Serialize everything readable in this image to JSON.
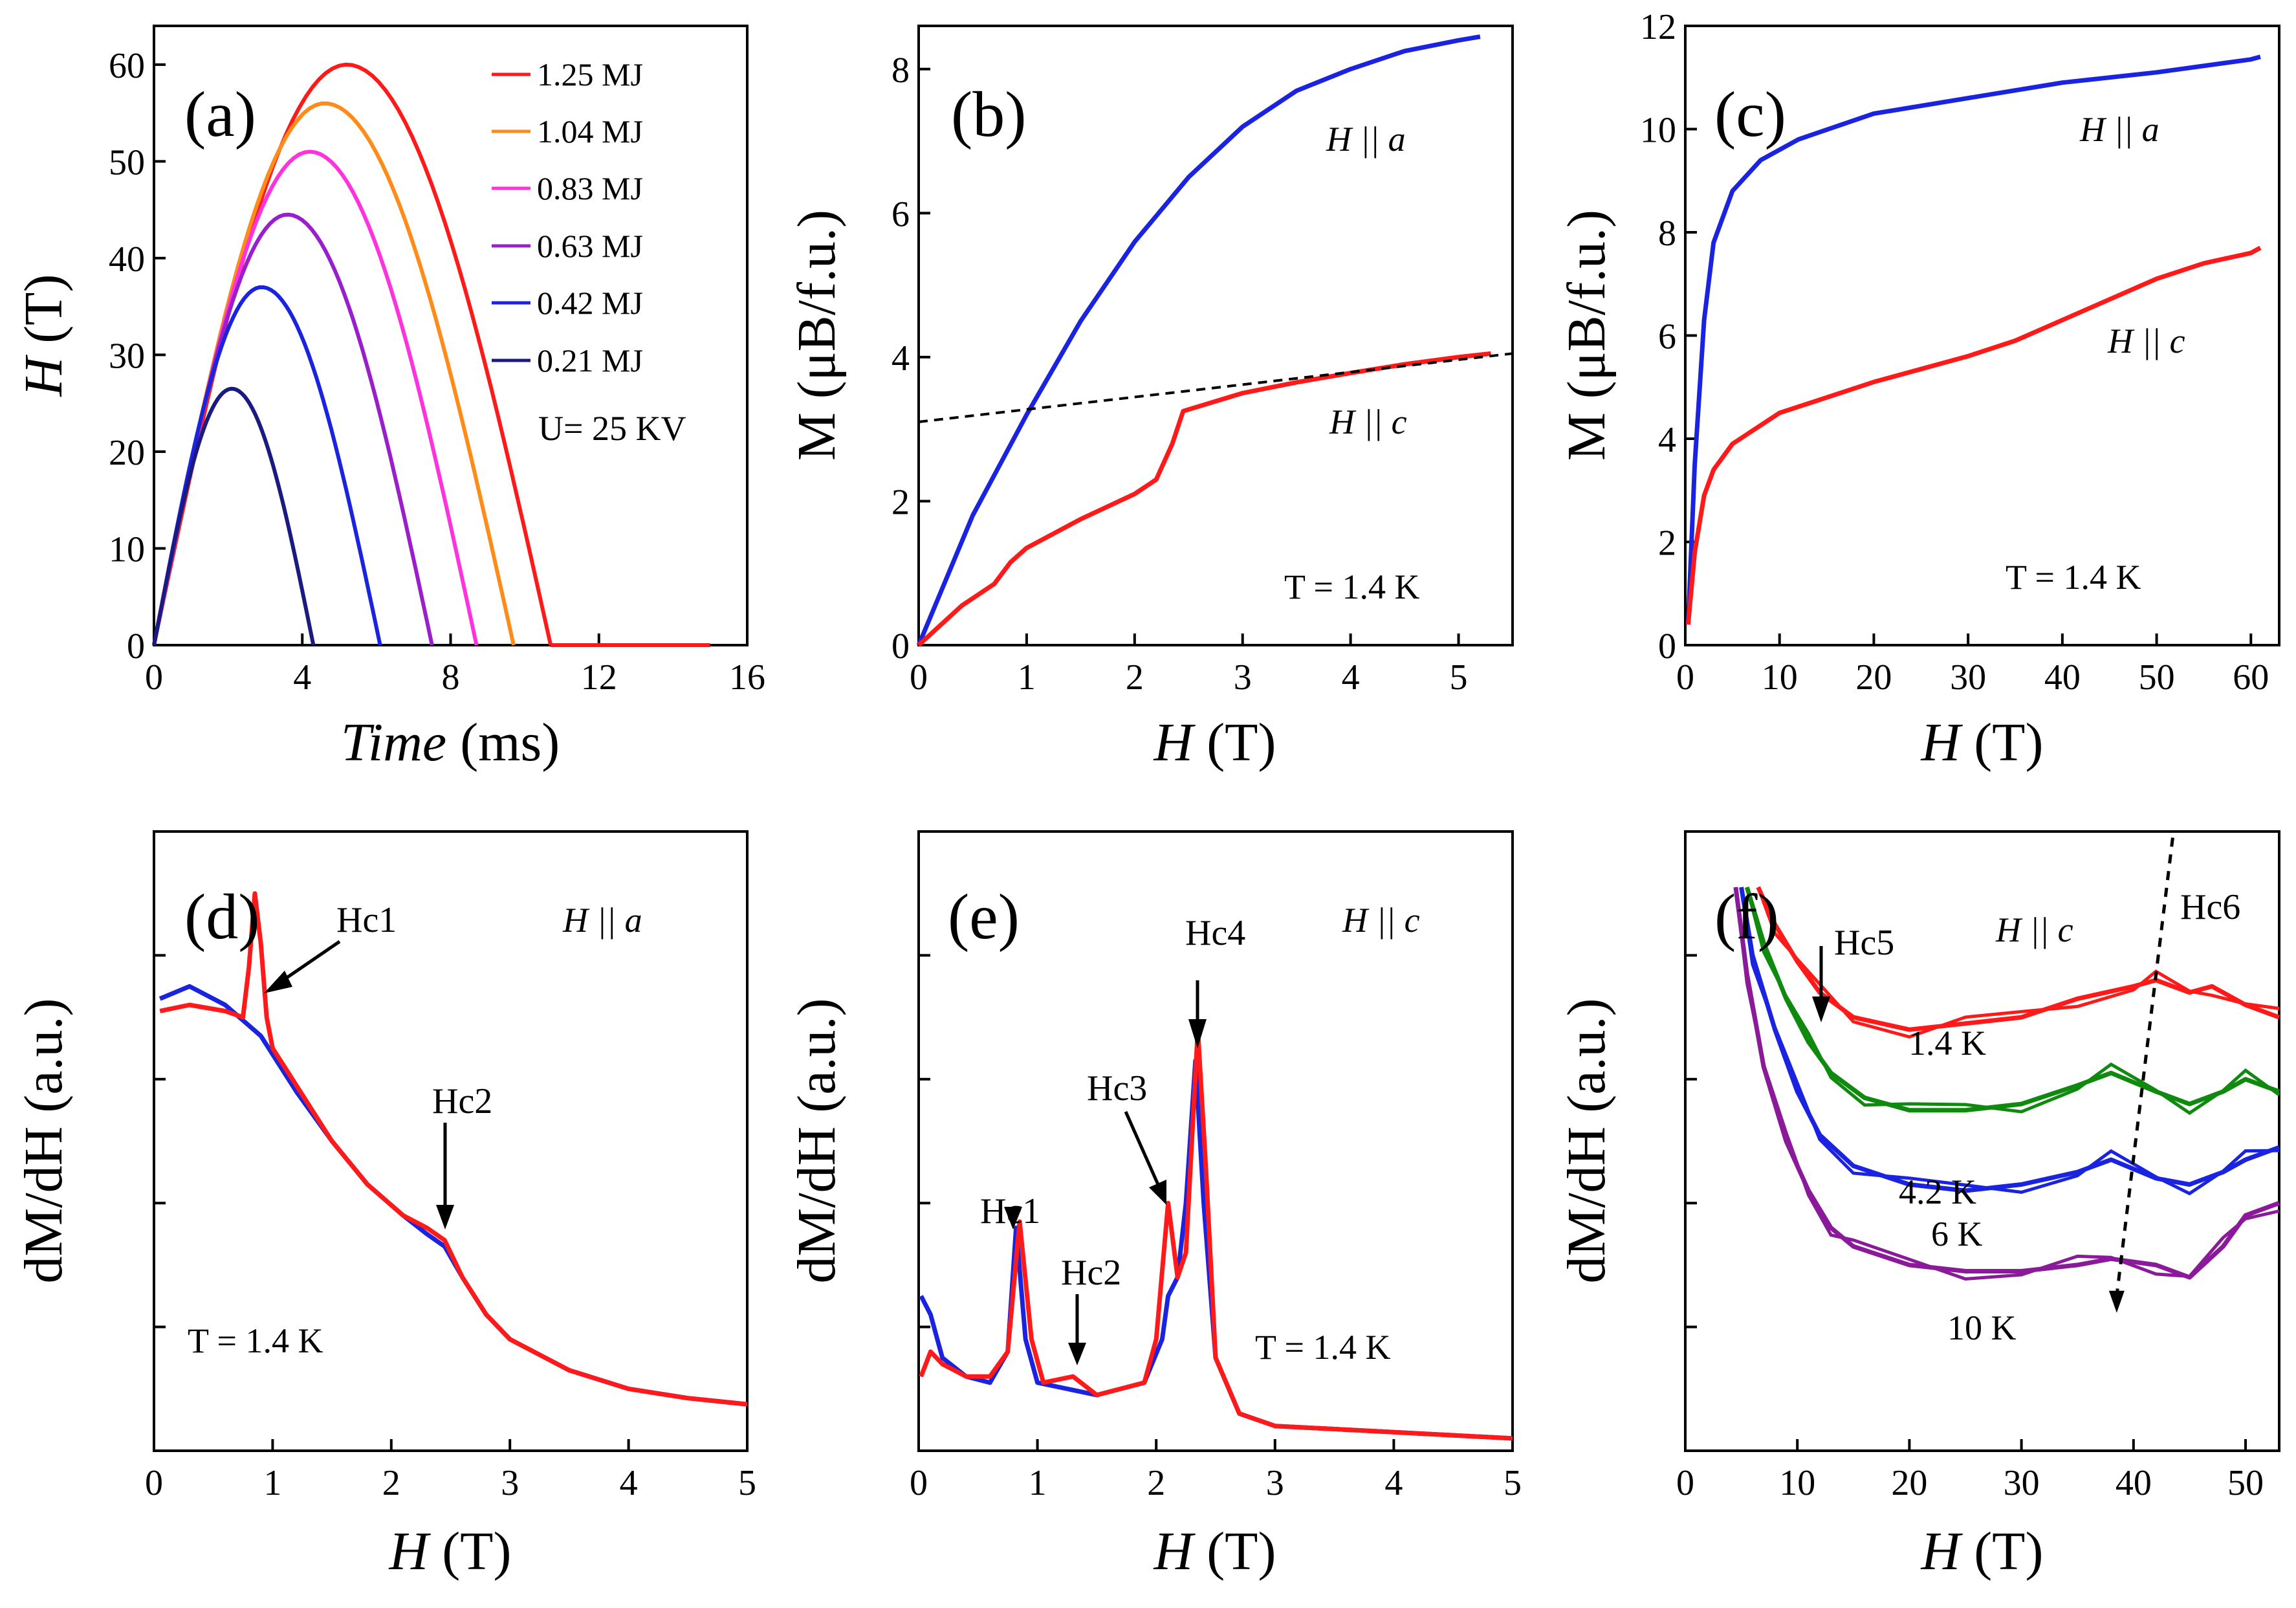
{
  "colors": {
    "red": "#ff1a1a",
    "orange": "#ff8c1a",
    "magenta": "#ff33dd",
    "purple": "#9a1fcc",
    "blue": "#1a24e0",
    "navy": "#1a1a80",
    "green": "#0f8a0f",
    "violet": "#8a1a99"
  },
  "chart_data": [
    {
      "id": "a",
      "type": "line",
      "panel_label": "(a)",
      "xlabel_italic": "Time",
      "xlabel_unit": " (ms)",
      "ylabel_italic": "H",
      "ylabel_unit": " (T)",
      "xlim": [
        0,
        16
      ],
      "ylim": [
        0,
        64
      ],
      "xticks": [
        0,
        4,
        8,
        12,
        16
      ],
      "yticks": [
        0,
        10,
        20,
        30,
        40,
        50,
        60
      ],
      "note": "U= 25 KV",
      "series": [
        {
          "name": "1.25 MJ",
          "color": "red",
          "peak_time": 5.2,
          "peak_field": 60,
          "end_time": 10.7
        },
        {
          "name": "1.04 MJ",
          "color": "orange",
          "peak_time": 4.6,
          "peak_field": 56,
          "end_time": 9.7
        },
        {
          "name": "0.83 MJ",
          "color": "magenta",
          "peak_time": 4.2,
          "peak_field": 51,
          "end_time": 8.7
        },
        {
          "name": "0.63 MJ",
          "color": "purple",
          "peak_time": 3.6,
          "peak_field": 44.5,
          "end_time": 7.5
        },
        {
          "name": "0.42 MJ",
          "color": "blue",
          "peak_time": 2.9,
          "peak_field": 37,
          "end_time": 6.1
        },
        {
          "name": "0.21 MJ",
          "color": "navy",
          "peak_time": 2.1,
          "peak_field": 26.5,
          "end_time": 4.3
        }
      ],
      "baseline": {
        "color": "red",
        "x": [
          10.7,
          15
        ]
      }
    },
    {
      "id": "b",
      "type": "line",
      "panel_label": "(b)",
      "xlabel_italic": "H",
      "xlabel_unit": " (T)",
      "ylabel": "M (μB/f.u.)",
      "xlim": [
        0,
        5.5
      ],
      "ylim": [
        0,
        8.6
      ],
      "xticks": [
        0,
        1,
        2,
        3,
        4,
        5
      ],
      "yticks": [
        0,
        2,
        4,
        6,
        8
      ],
      "note": "T = 1.4 K",
      "labels": [
        "H || a",
        "H || c"
      ],
      "series": [
        {
          "name": "H || a",
          "color": "blue",
          "x": [
            0,
            0.5,
            1.0,
            1.5,
            2.0,
            2.5,
            3.0,
            3.5,
            4.0,
            4.5,
            5.0,
            5.2
          ],
          "y": [
            0,
            1.8,
            3.2,
            4.5,
            5.6,
            6.5,
            7.2,
            7.7,
            8.0,
            8.25,
            8.4,
            8.45
          ]
        },
        {
          "name": "H || c",
          "color": "red",
          "x": [
            0,
            0.4,
            0.7,
            0.85,
            1.0,
            1.5,
            2.0,
            2.2,
            2.35,
            2.45,
            3.0,
            3.5,
            4.0,
            4.5,
            5.0,
            5.3
          ],
          "y": [
            0,
            0.55,
            0.85,
            1.15,
            1.35,
            1.75,
            2.1,
            2.3,
            2.8,
            3.25,
            3.5,
            3.65,
            3.78,
            3.9,
            4.0,
            4.05
          ]
        },
        {
          "name": "linear extrapolation",
          "color": "black",
          "dashed": true,
          "x": [
            0,
            5.5
          ],
          "y": [
            3.1,
            4.05
          ]
        }
      ]
    },
    {
      "id": "c",
      "type": "line",
      "panel_label": "(c)",
      "xlabel_italic": "H",
      "xlabel_unit": " (T)",
      "ylabel": "M (μB/f.u.)",
      "xlim": [
        0,
        63
      ],
      "ylim": [
        0,
        12
      ],
      "xticks": [
        0,
        10,
        20,
        30,
        40,
        50,
        60
      ],
      "yticks": [
        0,
        2,
        4,
        6,
        8,
        10,
        12
      ],
      "note": "T = 1.4 K",
      "labels": [
        "H || a",
        "H || c"
      ],
      "series": [
        {
          "name": "H || a",
          "color": "blue",
          "x": [
            0.3,
            1,
            2,
            3,
            5,
            8,
            12,
            20,
            30,
            40,
            50,
            60,
            61
          ],
          "y": [
            0.4,
            3.5,
            6.3,
            7.8,
            8.8,
            9.4,
            9.8,
            10.3,
            10.6,
            10.9,
            11.1,
            11.35,
            11.4
          ]
        },
        {
          "name": "H || c",
          "color": "red",
          "x": [
            0.3,
            1,
            2,
            3,
            5,
            10,
            20,
            30,
            35,
            40,
            45,
            50,
            55,
            60,
            61
          ],
          "y": [
            0.4,
            1.8,
            2.9,
            3.4,
            3.9,
            4.5,
            5.1,
            5.6,
            5.9,
            6.3,
            6.7,
            7.1,
            7.4,
            7.6,
            7.7
          ]
        }
      ]
    },
    {
      "id": "d",
      "type": "line",
      "panel_label": "(d)",
      "xlabel_italic": "H",
      "xlabel_unit": " (T)",
      "ylabel": "dM/dH (a.u.)",
      "xlim": [
        0,
        5
      ],
      "ylim": [
        0,
        1
      ],
      "xticks": [
        0,
        1,
        2,
        3,
        4,
        5
      ],
      "yticks": [],
      "note": "T = 1.4 K",
      "field_label": "H || a",
      "annotations": [
        "Hc1",
        "Hc2"
      ],
      "series": [
        {
          "name": "blue",
          "color": "blue",
          "x": [
            0.05,
            0.3,
            0.6,
            0.9,
            1.2,
            1.5,
            1.8,
            2.1,
            2.3,
            2.45,
            2.6,
            2.8,
            3.0,
            3.5,
            4.0,
            4.5,
            5.0
          ],
          "y": [
            0.73,
            0.75,
            0.72,
            0.67,
            0.58,
            0.5,
            0.43,
            0.38,
            0.35,
            0.33,
            0.28,
            0.22,
            0.18,
            0.13,
            0.1,
            0.085,
            0.075
          ]
        },
        {
          "name": "red",
          "color": "red",
          "x": [
            0.05,
            0.3,
            0.6,
            0.75,
            0.8,
            0.85,
            0.9,
            0.95,
            1.0,
            1.2,
            1.5,
            1.8,
            2.1,
            2.3,
            2.45,
            2.6,
            2.8,
            3.0,
            3.5,
            4.0,
            4.5,
            5.0
          ],
          "y": [
            0.71,
            0.72,
            0.71,
            0.7,
            0.78,
            0.9,
            0.82,
            0.7,
            0.65,
            0.59,
            0.5,
            0.43,
            0.38,
            0.36,
            0.34,
            0.28,
            0.22,
            0.18,
            0.13,
            0.1,
            0.085,
            0.075
          ]
        }
      ]
    },
    {
      "id": "e",
      "type": "line",
      "panel_label": "(e)",
      "xlabel_italic": "H",
      "xlabel_unit": " (T)",
      "ylabel": "dM/dH (a.u.)",
      "xlim": [
        0,
        5
      ],
      "ylim": [
        0,
        1
      ],
      "xticks": [
        0,
        1,
        2,
        3,
        4,
        5
      ],
      "yticks": [],
      "note": "T = 1.4 K",
      "field_label": "H || c",
      "annotations": [
        "Hc1",
        "Hc2",
        "Hc3",
        "Hc4"
      ],
      "series": [
        {
          "name": "blue",
          "color": "blue",
          "x": [
            0.02,
            0.1,
            0.2,
            0.4,
            0.6,
            0.75,
            0.82,
            0.9,
            1.0,
            1.5,
            1.9,
            2.05,
            2.1,
            2.18,
            2.25,
            2.33,
            2.4,
            2.5,
            2.7,
            3.0,
            4.0,
            5.0
          ],
          "y": [
            0.25,
            0.22,
            0.15,
            0.12,
            0.11,
            0.16,
            0.36,
            0.18,
            0.11,
            0.09,
            0.11,
            0.18,
            0.25,
            0.28,
            0.4,
            0.63,
            0.4,
            0.15,
            0.06,
            0.04,
            0.03,
            0.02
          ]
        },
        {
          "name": "red",
          "color": "red",
          "x": [
            0.02,
            0.1,
            0.2,
            0.4,
            0.6,
            0.75,
            0.85,
            0.95,
            1.05,
            1.3,
            1.5,
            1.9,
            2.0,
            2.1,
            2.18,
            2.25,
            2.35,
            2.42,
            2.5,
            2.7,
            3.0,
            4.0,
            5.0
          ],
          "y": [
            0.12,
            0.16,
            0.14,
            0.12,
            0.12,
            0.16,
            0.37,
            0.18,
            0.11,
            0.12,
            0.09,
            0.11,
            0.18,
            0.4,
            0.28,
            0.32,
            0.68,
            0.45,
            0.15,
            0.06,
            0.04,
            0.03,
            0.02
          ]
        }
      ]
    },
    {
      "id": "f",
      "type": "line",
      "panel_label": "(f)",
      "xlabel_italic": "H",
      "xlabel_unit": " (T)",
      "ylabel": "dM/dH (a.u.)",
      "xlim": [
        0,
        53
      ],
      "ylim": [
        0,
        1
      ],
      "xticks": [
        0,
        10,
        20,
        30,
        40,
        50
      ],
      "yticks": [],
      "field_label": "H || c",
      "annotations": [
        "Hc5",
        "Hc6"
      ],
      "series": [
        {
          "name": "1.4 K",
          "color": "red",
          "x": [
            6.5,
            8,
            10,
            12,
            15,
            20,
            25,
            30,
            35,
            40,
            42,
            45,
            47,
            50,
            53
          ],
          "y": [
            0.91,
            0.85,
            0.79,
            0.74,
            0.7,
            0.68,
            0.69,
            0.7,
            0.73,
            0.75,
            0.76,
            0.74,
            0.75,
            0.72,
            0.7
          ]
        },
        {
          "name": "4.2 K",
          "color": "green",
          "x": [
            5.5,
            7,
            9,
            11,
            13,
            16,
            20,
            25,
            30,
            35,
            38,
            42,
            45,
            48,
            50,
            53
          ],
          "y": [
            0.91,
            0.82,
            0.73,
            0.66,
            0.61,
            0.57,
            0.55,
            0.55,
            0.56,
            0.59,
            0.61,
            0.58,
            0.56,
            0.58,
            0.6,
            0.58
          ]
        },
        {
          "name": "6 K",
          "color": "blue",
          "x": [
            5,
            6,
            8,
            10,
            12,
            15,
            20,
            25,
            30,
            35,
            38,
            42,
            45,
            48,
            50,
            53
          ],
          "y": [
            0.91,
            0.8,
            0.68,
            0.58,
            0.51,
            0.46,
            0.43,
            0.42,
            0.43,
            0.45,
            0.47,
            0.44,
            0.43,
            0.45,
            0.47,
            0.49
          ]
        },
        {
          "name": "10 K",
          "color": "violet",
          "x": [
            4.5,
            5.5,
            7,
            9,
            11,
            13,
            15,
            20,
            25,
            30,
            35,
            38,
            42,
            45,
            48,
            50,
            53
          ],
          "y": [
            0.91,
            0.77,
            0.62,
            0.5,
            0.42,
            0.36,
            0.33,
            0.3,
            0.29,
            0.29,
            0.3,
            0.31,
            0.3,
            0.28,
            0.33,
            0.38,
            0.4
          ]
        }
      ],
      "trend": {
        "x": [
          43.5,
          38.5
        ],
        "y": [
          0.99,
          0.25
        ]
      }
    }
  ],
  "text": {
    "a_legend": [
      "1.25 MJ",
      "1.04 MJ",
      "0.83 MJ",
      "0.63 MJ",
      "0.42 MJ",
      "0.21 MJ"
    ]
  }
}
